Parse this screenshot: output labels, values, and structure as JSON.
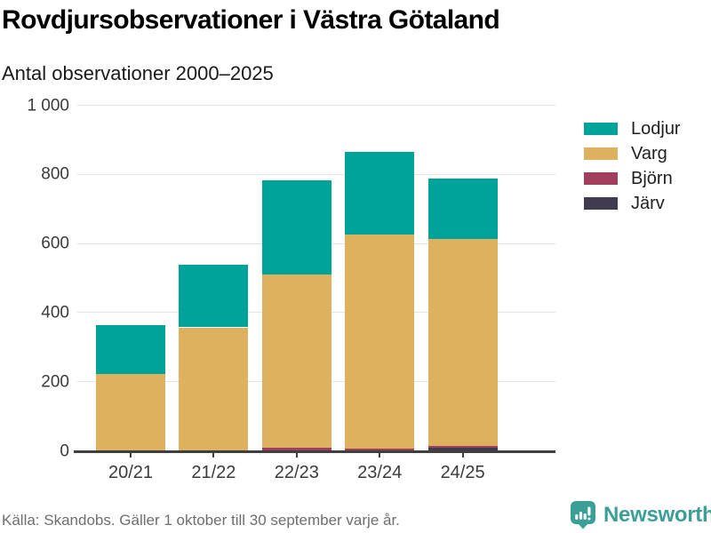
{
  "header": {
    "title": "Rovdjursobservationer i Västra Götaland",
    "subtitle": "Antal observationer 2000–2025"
  },
  "chart_data": {
    "type": "bar",
    "stacked": true,
    "title": "Rovdjursobservationer i Västra Götaland",
    "subtitle": "Antal observationer 2000–2025",
    "categories": [
      "20/21",
      "21/22",
      "22/23",
      "23/24",
      "24/25"
    ],
    "series": [
      {
        "name": "Järv",
        "color": "#403b4e",
        "values": [
          0,
          0,
          0,
          0,
          8
        ]
      },
      {
        "name": "Björn",
        "color": "#a23f5e",
        "values": [
          0,
          0,
          8,
          5,
          4
        ]
      },
      {
        "name": "Varg",
        "color": "#ddb15e",
        "values": [
          220,
          356,
          500,
          620,
          600
        ]
      },
      {
        "name": "Lodjur",
        "color": "#00a39a",
        "values": [
          142,
          182,
          274,
          240,
          176
        ]
      }
    ],
    "totals": [
      362,
      538,
      782,
      865,
      788
    ],
    "ylim": [
      0,
      1000
    ],
    "yticks": [
      {
        "value": 0,
        "label": "0"
      },
      {
        "value": 200,
        "label": "200"
      },
      {
        "value": 400,
        "label": "400"
      },
      {
        "value": 600,
        "label": "600"
      },
      {
        "value": 800,
        "label": "800"
      },
      {
        "value": 1000,
        "label": "1 000"
      }
    ],
    "grid": "horizontal",
    "legend_position": "right",
    "legend_order": [
      "Lodjur",
      "Varg",
      "Björn",
      "Järv"
    ]
  },
  "footer": {
    "source": "Källa: Skandobs. Gäller 1 oktober till 30 september varje år."
  },
  "brand": {
    "name": "Newsworthy",
    "color": "#3a9f97"
  }
}
